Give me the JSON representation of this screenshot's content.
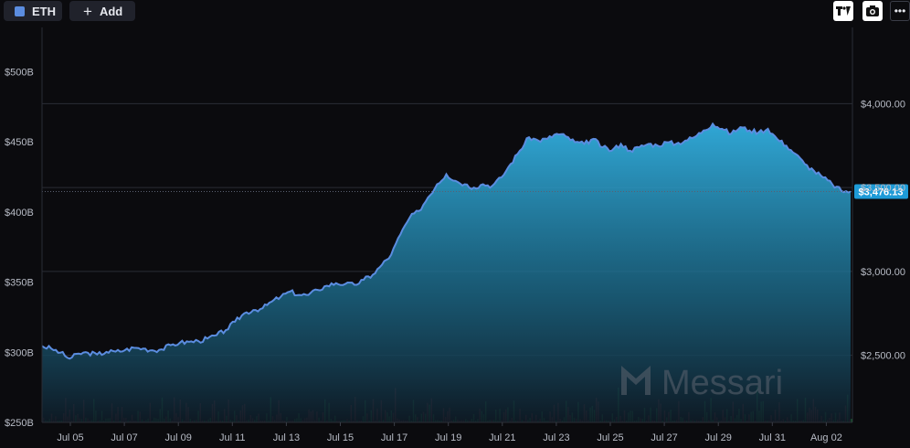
{
  "toolbar": {
    "asset_label": "ETH",
    "asset_color": "#5b8de0",
    "add_label": "Add",
    "icons": [
      "tradingview-icon",
      "camera-icon",
      "more-icon"
    ]
  },
  "watermark": "Messari",
  "chart_data": {
    "type": "area",
    "series": [
      {
        "axis": "right",
        "color": "#5b8de0",
        "start_value": 2555,
        "values": [
          2555,
          2540,
          2516,
          2480,
          2510,
          2515,
          2505,
          2520,
          2522,
          2530,
          2545,
          2540,
          2530,
          2535,
          2560,
          2575,
          2580,
          2585,
          2600,
          2620,
          2650,
          2700,
          2750,
          2770,
          2780,
          2820,
          2850,
          2880,
          2860,
          2860,
          2890,
          2915,
          2930,
          2925,
          2920,
          2950,
          2980,
          3040,
          3100,
          3220,
          3320,
          3360,
          3440,
          3520,
          3580,
          3540,
          3520,
          3500,
          3520,
          3510,
          3560,
          3640,
          3720,
          3800,
          3780,
          3790,
          3820,
          3805,
          3770,
          3760,
          3790,
          3740,
          3720,
          3760,
          3720,
          3740,
          3760,
          3750,
          3770,
          3760,
          3780,
          3800,
          3840,
          3880,
          3850,
          3820,
          3860,
          3840,
          3830,
          3850,
          3790,
          3750,
          3700,
          3640,
          3600,
          3560,
          3520,
          3480,
          3476.13
        ],
        "last_value_label": "$3,476.13"
      }
    ],
    "x_ticks": [
      "Jul 05",
      "Jul 07",
      "Jul 09",
      "Jul 11",
      "Jul 13",
      "Jul 15",
      "Jul 17",
      "Jul 19",
      "Jul 21",
      "Jul 23",
      "Jul 25",
      "Jul 27",
      "Jul 29",
      "Jul 31",
      "Aug 02"
    ],
    "y_right": {
      "ticks": [
        "$2,500.00",
        "$3,000.00",
        "$3,500.00",
        "$4,000.00"
      ],
      "tick_values": [
        2500,
        3000,
        3500,
        4000
      ],
      "ylim": [
        2100,
        4400
      ]
    },
    "y_left": {
      "ticks": [
        "$250B",
        "$300B",
        "$350B",
        "$400B",
        "$450B",
        "$500B"
      ],
      "tick_values": [
        250,
        300,
        350,
        400,
        450,
        500
      ],
      "ylim": [
        250,
        525
      ]
    },
    "volume_bars": true,
    "grid": true
  }
}
